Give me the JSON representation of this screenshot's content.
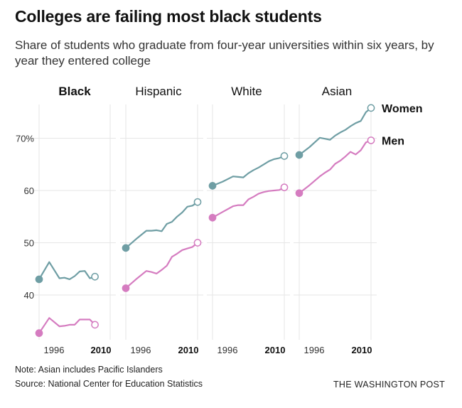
{
  "title": "Colleges are failing most black students",
  "subtitle": "Share of students who graduate from four-year universities within six years, by year they entered college",
  "note": "Note: Asian includes Pacific Islanders",
  "source": "Source: National Center for Education Statistics",
  "credit": "THE WASHINGTON POST",
  "colors": {
    "women": "#6f9ea4",
    "men": "#d57cc0",
    "grid": "#e6e6e6",
    "text": "#222222"
  },
  "chart_data": {
    "type": "line",
    "x_unit": "year entered college",
    "x_ticks": [
      "1996",
      "2010"
    ],
    "y_ticks": [
      "70%",
      "60",
      "50",
      "40"
    ],
    "ylim": [
      32,
      77
    ],
    "xlim": [
      1996,
      2010
    ],
    "grid": true,
    "legend": [
      "Women",
      "Men"
    ],
    "panels": [
      {
        "group": "Black",
        "bold": true,
        "series": [
          {
            "name": "Women",
            "x": [
              1996,
              1998,
              2000,
              2001,
              2002,
              2003,
              2004,
              2005,
              2006,
              2007
            ],
            "y": [
              43.0,
              46.3,
              43.2,
              43.3,
              43.0,
              43.6,
              44.5,
              44.6,
              43.2,
              43.5
            ]
          },
          {
            "name": "Men",
            "x": [
              1996,
              1998,
              2000,
              2001,
              2002,
              2003,
              2004,
              2005,
              2006,
              2007
            ],
            "y": [
              32.7,
              35.6,
              34.0,
              34.1,
              34.3,
              34.3,
              35.3,
              35.3,
              35.3,
              34.3
            ]
          }
        ]
      },
      {
        "group": "Hispanic",
        "bold": false,
        "series": [
          {
            "name": "Women",
            "x": [
              1996,
              1998,
              2000,
              2001,
              2002,
              2003,
              2004,
              2005,
              2006,
              2007,
              2008,
              2009,
              2010
            ],
            "y": [
              49.0,
              50.7,
              52.3,
              52.3,
              52.4,
              52.2,
              53.6,
              54.0,
              55.0,
              55.8,
              56.9,
              57.1,
              57.8
            ]
          },
          {
            "name": "Men",
            "x": [
              1996,
              1998,
              2000,
              2001,
              2002,
              2003,
              2004,
              2005,
              2006,
              2007,
              2008,
              2009,
              2010
            ],
            "y": [
              41.3,
              43.0,
              44.6,
              44.4,
              44.1,
              44.8,
              45.6,
              47.3,
              47.9,
              48.6,
              48.9,
              49.2,
              50.0
            ]
          }
        ]
      },
      {
        "group": "White",
        "bold": false,
        "series": [
          {
            "name": "Women",
            "x": [
              1996,
              1998,
              2000,
              2001,
              2002,
              2003,
              2004,
              2005,
              2006,
              2007,
              2008,
              2009,
              2010
            ],
            "y": [
              60.9,
              61.7,
              62.7,
              62.6,
              62.5,
              63.3,
              63.9,
              64.4,
              65.0,
              65.6,
              66.0,
              66.2,
              66.6
            ]
          },
          {
            "name": "Men",
            "x": [
              1996,
              1998,
              2000,
              2001,
              2002,
              2003,
              2004,
              2005,
              2006,
              2007,
              2008,
              2009,
              2010
            ],
            "y": [
              54.8,
              55.9,
              57.0,
              57.2,
              57.2,
              58.3,
              58.8,
              59.4,
              59.7,
              59.9,
              60.0,
              60.1,
              60.6
            ]
          }
        ]
      },
      {
        "group": "Asian",
        "bold": false,
        "series": [
          {
            "name": "Women",
            "x": [
              1996,
              1998,
              2000,
              2001,
              2002,
              2003,
              2004,
              2005,
              2006,
              2007,
              2008,
              2009,
              2010
            ],
            "y": [
              66.8,
              68.3,
              70.1,
              69.9,
              69.7,
              70.5,
              71.1,
              71.6,
              72.3,
              72.9,
              73.3,
              75.0,
              75.8
            ]
          },
          {
            "name": "Men",
            "x": [
              1996,
              1998,
              2000,
              2001,
              2002,
              2003,
              2004,
              2005,
              2006,
              2007,
              2008,
              2009,
              2010
            ],
            "y": [
              59.5,
              61.0,
              62.7,
              63.4,
              64.0,
              65.1,
              65.7,
              66.5,
              67.4,
              66.9,
              67.7,
              69.2,
              69.6
            ]
          }
        ]
      }
    ]
  }
}
